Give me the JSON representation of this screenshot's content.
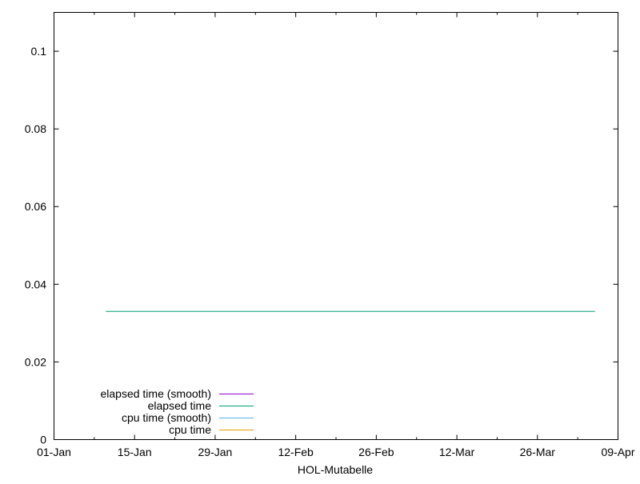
{
  "chart_data": {
    "type": "line",
    "title": "",
    "xlabel": "HOL-Mutabelle",
    "ylabel": "",
    "xlim": [
      "01-Jan",
      "09-Apr"
    ],
    "ylim": [
      0,
      0.11
    ],
    "x_ticks": [
      "01-Jan",
      "15-Jan",
      "29-Jan",
      "12-Feb",
      "26-Feb",
      "12-Mar",
      "26-Mar",
      "09-Apr"
    ],
    "y_ticks": [
      "0",
      "0.02",
      "0.04",
      "0.06",
      "0.08",
      "0.1"
    ],
    "grid": false,
    "legend_position": "bottom-left",
    "series": [
      {
        "name": "elapsed time (smooth)",
        "color": "#9400d3",
        "x": [],
        "y": []
      },
      {
        "name": "elapsed time",
        "color": "#009e73",
        "x": [
          "10-Jan",
          "05-Apr"
        ],
        "y": [
          0.033,
          0.033
        ]
      },
      {
        "name": "cpu time (smooth)",
        "color": "#56b4e9",
        "x": [],
        "y": []
      },
      {
        "name": "cpu time",
        "color": "#e69f00",
        "x": [],
        "y": []
      }
    ]
  }
}
